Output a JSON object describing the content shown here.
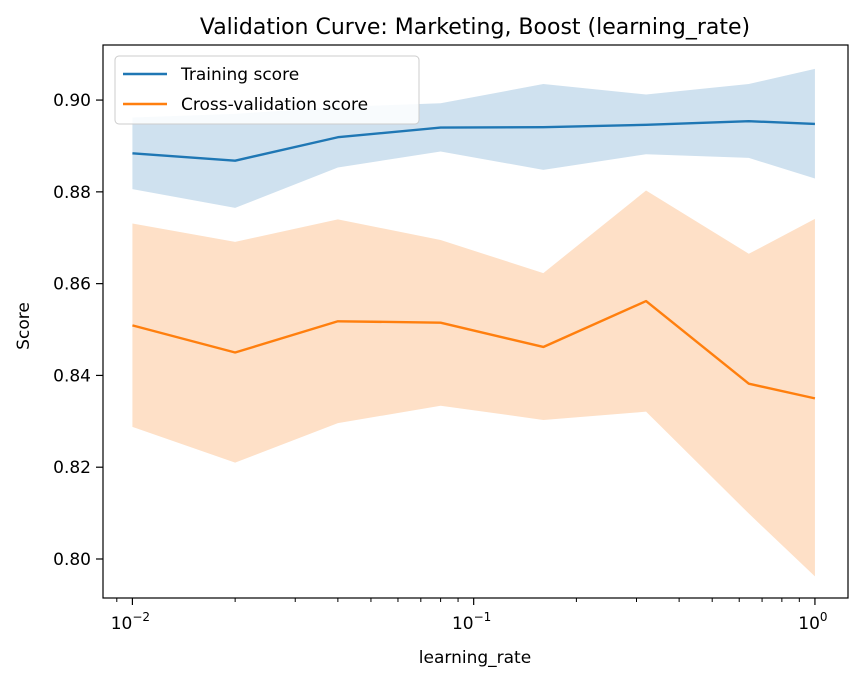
{
  "chart_data": {
    "type": "line",
    "title": "Validation Curve: Marketing, Boost (learning_rate)",
    "xlabel": "learning_rate",
    "ylabel": "Score",
    "xscale": "log",
    "xlim": [
      0.0082,
      1.25
    ],
    "ylim": [
      0.7915,
      0.912
    ],
    "x": [
      0.01,
      0.02,
      0.04,
      0.08,
      0.16,
      0.32,
      0.64,
      1.0
    ],
    "x_major_ticks": [
      {
        "value": 0.01,
        "base": "10",
        "exp": "−2"
      },
      {
        "value": 0.1,
        "base": "10",
        "exp": "−1"
      },
      {
        "value": 1.0,
        "base": "10",
        "exp": "0"
      }
    ],
    "y_ticks": [
      {
        "value": 0.8,
        "label": "0.80"
      },
      {
        "value": 0.82,
        "label": "0.82"
      },
      {
        "value": 0.84,
        "label": "0.84"
      },
      {
        "value": 0.86,
        "label": "0.86"
      },
      {
        "value": 0.88,
        "label": "0.88"
      },
      {
        "value": 0.9,
        "label": "0.90"
      }
    ],
    "grid": false,
    "legend_position": "top-left",
    "series": [
      {
        "name": "Training score",
        "color": "#1f77b4",
        "band_color": "#cfe1ef",
        "values": [
          0.8884,
          0.8868,
          0.8919,
          0.894,
          0.8941,
          0.8946,
          0.8954,
          0.8948
        ],
        "upper": [
          0.8962,
          0.897,
          0.8985,
          0.8993,
          0.9035,
          0.9012,
          0.9035,
          0.9068
        ],
        "lower": [
          0.8806,
          0.8765,
          0.8853,
          0.8888,
          0.8848,
          0.8882,
          0.8874,
          0.8829
        ]
      },
      {
        "name": "Cross-validation score",
        "color": "#ff7f0e",
        "band_color": "#fee0c7",
        "values": [
          0.8509,
          0.845,
          0.8518,
          0.8515,
          0.8462,
          0.8562,
          0.8382,
          0.835
        ],
        "upper": [
          0.8731,
          0.8691,
          0.874,
          0.8695,
          0.8623,
          0.8803,
          0.8665,
          0.8741
        ],
        "lower": [
          0.8288,
          0.821,
          0.8296,
          0.8334,
          0.8303,
          0.8321,
          0.8099,
          0.7962
        ]
      }
    ]
  }
}
